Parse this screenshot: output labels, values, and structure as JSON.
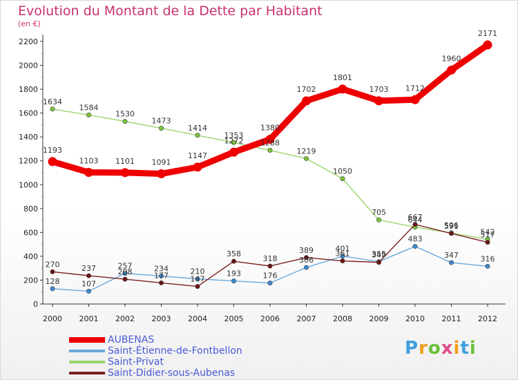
{
  "title": "Evolution du Montant de la Dette par Habitant",
  "subtitle": "(en €)",
  "logo_text": "Proxiti",
  "chart_data": {
    "type": "line",
    "title": "Evolution du Montant de la Dette par Habitant",
    "subtitle": "(en €)",
    "x": [
      "2000",
      "2001",
      "2002",
      "2003",
      "2004",
      "2005",
      "2006",
      "2007",
      "2008",
      "2009",
      "2010",
      "2011",
      "2012"
    ],
    "ylim": [
      0,
      2200
    ],
    "yticks": [
      0,
      200,
      400,
      600,
      800,
      1000,
      1200,
      1400,
      1600,
      1800,
      2000,
      2200
    ],
    "grid": false,
    "legend_position": "bottom-left",
    "series": [
      {
        "name": "AUBENAS",
        "color": "#ee0000",
        "marker_color": "#ee0000",
        "values": [
          1193,
          1103,
          1101,
          1091,
          1147,
          1272,
          1380,
          1702,
          1801,
          1703,
          1712,
          1960,
          2171
        ]
      },
      {
        "name": "Saint-Étienne-de-Fontbellon",
        "color": "#6aa8dc",
        "marker_color": "#3c88d0",
        "values": [
          128,
          107,
          257,
          234,
          210,
          193,
          176,
          306,
          401,
          355,
          483,
          347,
          316
        ]
      },
      {
        "name": "Saint-Privat",
        "color": "#9ad66a",
        "marker_color": "#7ac43c",
        "values": [
          1634,
          1584,
          1530,
          1473,
          1414,
          1353,
          1288,
          1219,
          1050,
          705,
          644,
          596,
          542
        ]
      },
      {
        "name": "Saint-Didier-sous-Aubenas",
        "color": "#7a2020",
        "marker_color": "#6a1414",
        "values": [
          270,
          237,
          208,
          177,
          147,
          358,
          318,
          389,
          361,
          349,
          667,
          591,
          517
        ]
      }
    ]
  }
}
